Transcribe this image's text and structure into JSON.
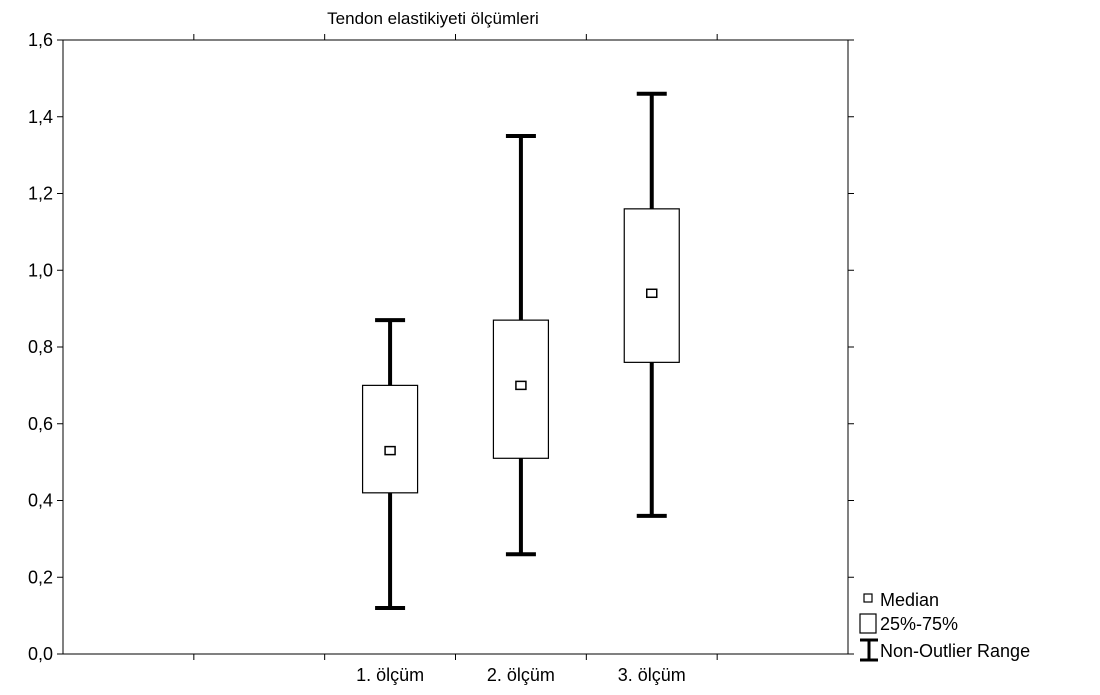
{
  "chart_data": {
    "type": "boxplot",
    "title": "Tendon elastikiyeti ölçümleri",
    "xlabel": "",
    "ylabel": "",
    "ylim": [
      0,
      1.6
    ],
    "y_ticks": [
      {
        "value": 0.0,
        "label": "0,0"
      },
      {
        "value": 0.2,
        "label": "0,2"
      },
      {
        "value": 0.4,
        "label": "0,4"
      },
      {
        "value": 0.6,
        "label": "0,6"
      },
      {
        "value": 0.8,
        "label": "0,8"
      },
      {
        "value": 1.0,
        "label": "1,0"
      },
      {
        "value": 1.2,
        "label": "1,2"
      },
      {
        "value": 1.4,
        "label": "1,4"
      },
      {
        "value": 1.6,
        "label": "1,6"
      }
    ],
    "grid": false,
    "legend_position": "bottom-right",
    "categories": [
      "1. ölçüm",
      "2. ölçüm",
      "3. ölçüm"
    ],
    "boxes": [
      {
        "category": "1. ölçüm",
        "min": 0.12,
        "q1": 0.42,
        "median": 0.53,
        "q3": 0.7,
        "max": 0.87
      },
      {
        "category": "2. ölçüm",
        "min": 0.26,
        "q1": 0.51,
        "median": 0.7,
        "q3": 0.87,
        "max": 1.35
      },
      {
        "category": "3. ölçüm",
        "min": 0.36,
        "q1": 0.76,
        "median": 0.94,
        "q3": 1.16,
        "max": 1.46
      }
    ],
    "legend": {
      "median": "Median",
      "box": "25%-75%",
      "whisker": "Non-Outlier Range"
    },
    "colors": {
      "stroke": "#000000",
      "background": "#ffffff"
    }
  }
}
